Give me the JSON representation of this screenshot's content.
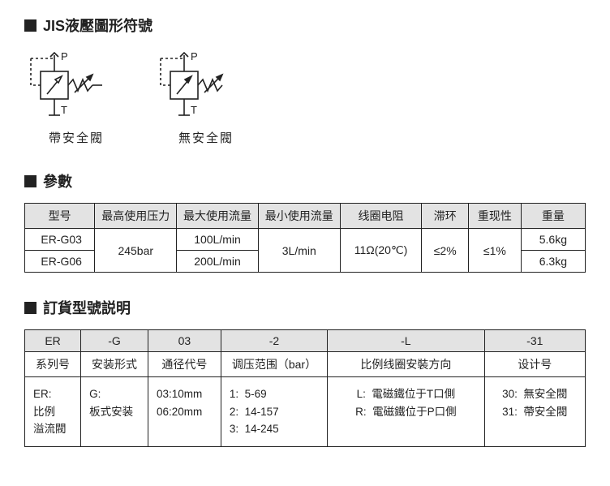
{
  "jis": {
    "title": "JIS液壓圖形符號",
    "symbol1_caption": "帶安全閥",
    "symbol2_caption": "無安全閥",
    "label_P": "P",
    "label_T": "T"
  },
  "params": {
    "title": "參數",
    "headers": [
      "型号",
      "最高使用压力",
      "最大使用流量",
      "最小使用流量",
      "线圈电阻",
      "滞环",
      "重现性",
      "重量"
    ],
    "col_widths": [
      "12%",
      "14%",
      "14%",
      "14%",
      "14%",
      "8%",
      "9%",
      "11%"
    ],
    "rows": [
      {
        "model": "ER-G03",
        "max_flow": "100L/min",
        "weight": "5.6kg"
      },
      {
        "model": "ER-G06",
        "max_flow": "200L/min",
        "weight": "6.3kg"
      }
    ],
    "max_pressure": "245bar",
    "min_flow": "3L/min",
    "coil_res": "11Ω(20℃)",
    "hysteresis": "≤2%",
    "repeat": "≤1%"
  },
  "order": {
    "title": "訂貨型號説明",
    "top_row": [
      "ER",
      "-G",
      "03",
      "-2",
      "-L",
      "-31"
    ],
    "labels": [
      "系列号",
      "安装形式",
      "通径代号",
      "调压范围（bar）",
      "比例线圈安裝方向",
      "设计号"
    ],
    "col_widths": [
      "10%",
      "12%",
      "13%",
      "19%",
      "28%",
      "18%"
    ],
    "c0": "ER:\n比例\n溢流閥",
    "c1": "G:\n板式安装",
    "c2": "03:10mm\n06:20mm",
    "c3": "1:  5-69\n2:  14-157\n3:  14-245",
    "c4": "L:  電磁鐵位于T口側\nR:  電磁鐵位于P口側",
    "c5": "30:  無安全閥\n31:  帶安全閥"
  },
  "colors": {
    "line": "#222222",
    "header_bg": "#e3e3e3",
    "bg": "#ffffff"
  }
}
